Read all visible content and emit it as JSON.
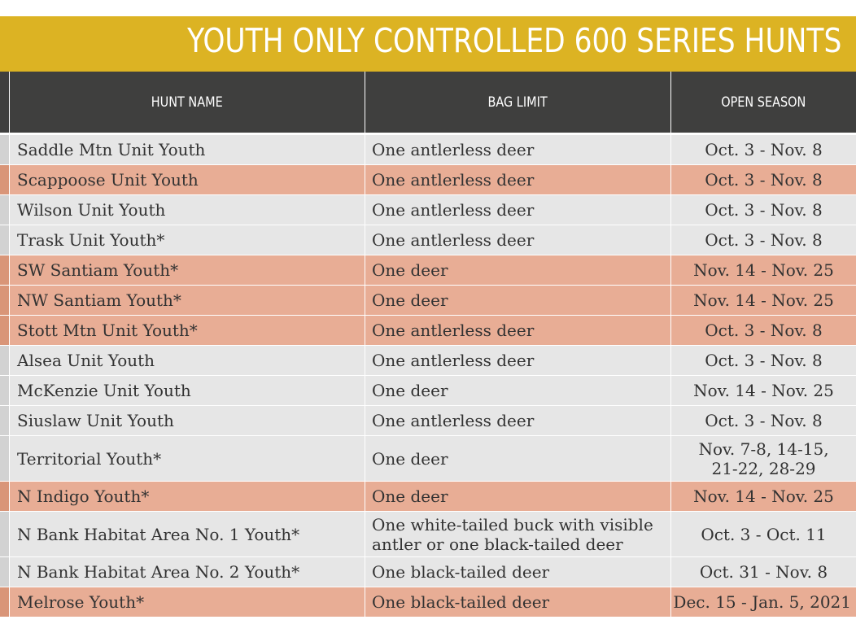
{
  "banner": {
    "title": "YOUTH ONLY CONTROLLED 600 SERIES HUNTS"
  },
  "table": {
    "headers": {
      "hunt_name": "HUNT NAME",
      "bag_limit": "BAG LIMIT",
      "open_season": "OPEN SEASON"
    },
    "rows": [
      {
        "hunt_name": "Saddle Mtn Unit Youth",
        "bag_limit": "One antlerless deer",
        "open_season": "Oct. 3 - Nov. 8",
        "shade": "gray"
      },
      {
        "hunt_name": "Scappoose Unit Youth",
        "bag_limit": "One antlerless deer",
        "open_season": "Oct. 3 - Nov. 8",
        "shade": "salmon"
      },
      {
        "hunt_name": "Wilson Unit Youth",
        "bag_limit": "One antlerless deer",
        "open_season": "Oct. 3 - Nov. 8",
        "shade": "gray"
      },
      {
        "hunt_name": "Trask Unit Youth*",
        "bag_limit": "One antlerless deer",
        "open_season": "Oct. 3 - Nov. 8",
        "shade": "gray"
      },
      {
        "hunt_name": "SW Santiam Youth*",
        "bag_limit": "One deer",
        "open_season": "Nov. 14 - Nov. 25",
        "shade": "salmon"
      },
      {
        "hunt_name": "NW Santiam Youth*",
        "bag_limit": "One deer",
        "open_season": "Nov. 14 - Nov. 25",
        "shade": "salmon"
      },
      {
        "hunt_name": "Stott Mtn Unit Youth*",
        "bag_limit": "One antlerless deer",
        "open_season": "Oct. 3 - Nov. 8",
        "shade": "salmon"
      },
      {
        "hunt_name": "Alsea Unit Youth",
        "bag_limit": "One antlerless deer",
        "open_season": "Oct. 3 - Nov. 8",
        "shade": "gray"
      },
      {
        "hunt_name": "McKenzie Unit Youth",
        "bag_limit": "One deer",
        "open_season": "Nov. 14 - Nov. 25",
        "shade": "gray"
      },
      {
        "hunt_name": "Siuslaw Unit Youth",
        "bag_limit": "One antlerless deer",
        "open_season": "Oct. 3 - Nov. 8",
        "shade": "gray"
      },
      {
        "hunt_name": "Territorial Youth*",
        "bag_limit": "One deer",
        "open_season": "Nov. 7-8, 14-15, 21-22, 28-29",
        "shade": "gray"
      },
      {
        "hunt_name": "N Indigo Youth*",
        "bag_limit": "One deer",
        "open_season": "Nov. 14 - Nov. 25",
        "shade": "salmon"
      },
      {
        "hunt_name": "N Bank Habitat Area No. 1 Youth*",
        "bag_limit": "One white-tailed buck with visible antler or one black-tailed deer",
        "open_season": "Oct. 3 - Oct. 11",
        "shade": "gray"
      },
      {
        "hunt_name": "N Bank Habitat Area No. 2 Youth*",
        "bag_limit": "One black-tailed deer",
        "open_season": "Oct. 31 - Nov. 8",
        "shade": "gray"
      },
      {
        "hunt_name": "Melrose Youth*",
        "bag_limit": "One black-tailed deer",
        "open_season": "Dec. 15 - Jan. 5, 2021",
        "shade": "salmon"
      }
    ]
  }
}
